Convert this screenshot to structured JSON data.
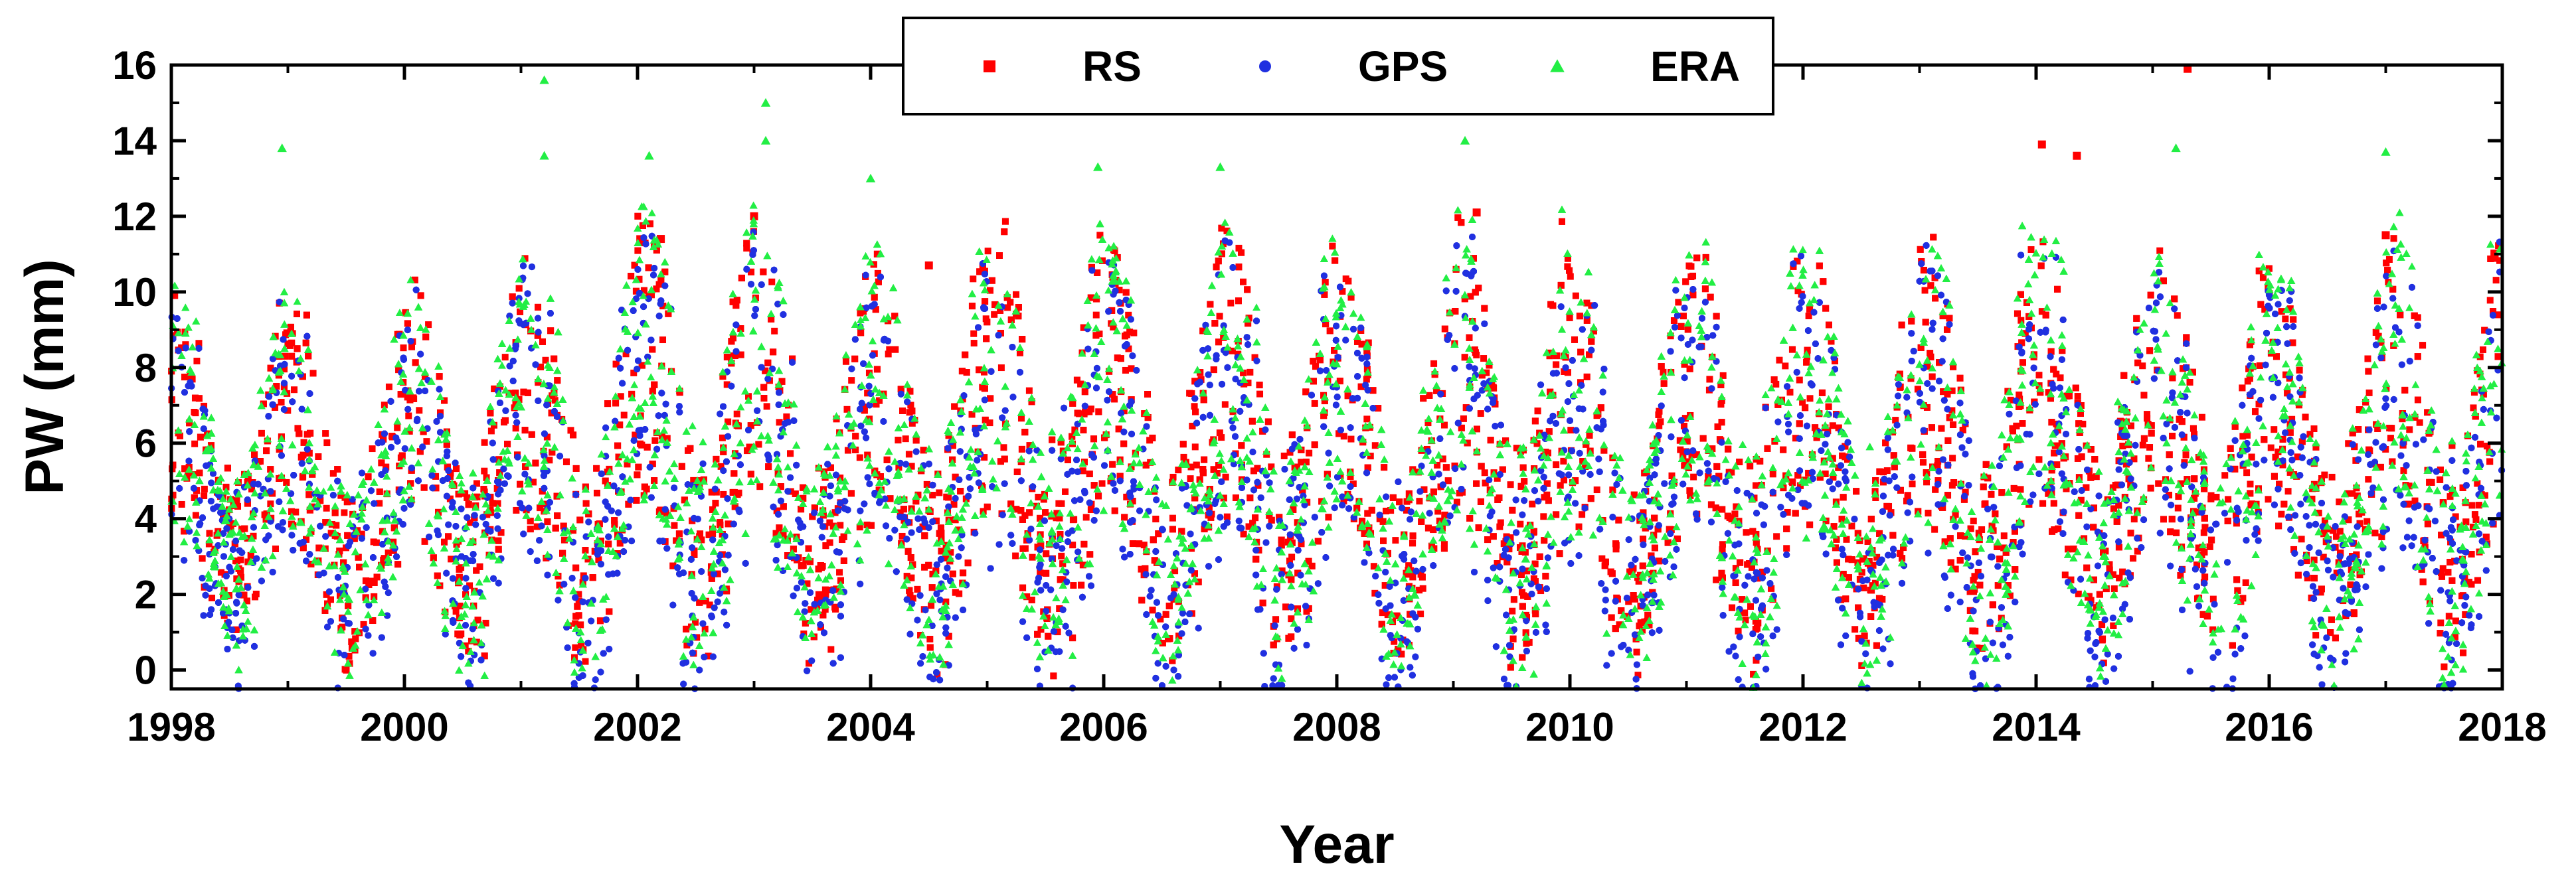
{
  "chart_data": {
    "type": "scatter",
    "title": "",
    "xlabel": "Year",
    "ylabel": "PW (mm)",
    "xlim": [
      1998,
      2018
    ],
    "ylim": [
      -0.5,
      16
    ],
    "xticks": [
      1998,
      2000,
      2002,
      2004,
      2006,
      2008,
      2010,
      2012,
      2014,
      2016,
      2018
    ],
    "xtick_labels": [
      "1998",
      "2000",
      "2002",
      "2004",
      "2006",
      "2008",
      "2010",
      "2012",
      "2014",
      "2016",
      "2018"
    ],
    "yticks": [
      0,
      2,
      4,
      6,
      8,
      10,
      12,
      14,
      16
    ],
    "ytick_labels": [
      "0",
      "2",
      "4",
      "6",
      "8",
      "10",
      "12",
      "14",
      "16"
    ],
    "grid": false,
    "legend": {
      "position": "top-center",
      "entries": [
        "RS",
        "GPS",
        "ERA"
      ]
    },
    "series": [
      {
        "name": "RS",
        "marker": "square",
        "color": "#ff0000",
        "description_seasonal": {
          "annual_cycle": true,
          "summer_peak_mm": [
            8.8,
            8.3,
            9.3,
            10.0,
            11.0,
            9.8,
            10.0,
            10.7,
            10.0,
            10.6,
            9.4,
            10.8,
            9.4,
            10.2,
            9.8,
            10.7,
            10.2,
            9.9,
            9.2,
            10.6,
            9.8
          ],
          "winter_min_mm": [
            1.0,
            0.5,
            0.8,
            0.6,
            0.6,
            0.6,
            0.6,
            0.6,
            0.8,
            0.6,
            0.6,
            0.6,
            0.6,
            0.6,
            0.6,
            0.6,
            0.6,
            0.6,
            0.6,
            0.6,
            0.6
          ]
        },
        "outliers": [
          {
            "x": 2002.2,
            "y": 11.4
          },
          {
            "x": 2003.0,
            "y": 12.0
          },
          {
            "x": 2004.5,
            "y": 10.7
          },
          {
            "x": 2009.2,
            "y": 12.1
          },
          {
            "x": 2014.05,
            "y": 13.9
          },
          {
            "x": 2014.35,
            "y": 13.6
          },
          {
            "x": 2015.3,
            "y": 15.9
          },
          {
            "x": 2017.0,
            "y": 11.5
          }
        ]
      },
      {
        "name": "GPS",
        "marker": "circle",
        "color": "#2030e0",
        "description_seasonal": {
          "annual_cycle": true,
          "summer_peak_mm": [
            8.6,
            8.0,
            9.0,
            9.8,
            10.5,
            9.5,
            9.8,
            10.4,
            9.8,
            10.3,
            9.2,
            10.5,
            9.2,
            10.0,
            9.5,
            10.4,
            10.0,
            9.7,
            9.0,
            10.3,
            9.6
          ],
          "winter_min_mm": [
            0.2,
            -0.3,
            0.0,
            -0.3,
            -0.3,
            -0.3,
            -0.3,
            -0.4,
            -0.3,
            -0.3,
            -0.3,
            -0.4,
            -0.4,
            -0.3,
            -0.3,
            -0.4,
            -0.5,
            -0.4,
            -0.4,
            -0.3,
            -0.3
          ]
        }
      },
      {
        "name": "ERA",
        "marker": "triangle",
        "color": "#22ee44",
        "description_seasonal": {
          "annual_cycle": true,
          "summer_peak_mm": [
            9.0,
            8.6,
            9.5,
            10.3,
            11.2,
            10.0,
            10.3,
            11.0,
            10.3,
            10.8,
            9.6,
            11.0,
            9.6,
            10.5,
            10.0,
            11.0,
            10.5,
            10.2,
            9.4,
            10.9,
            10.0
          ],
          "winter_min_mm": [
            0.6,
            0.3,
            0.5,
            0.3,
            0.3,
            0.3,
            0.3,
            0.3,
            0.4,
            0.3,
            0.3,
            0.3,
            0.3,
            0.3,
            0.3,
            0.3,
            0.3,
            0.3,
            0.3,
            0.3,
            0.3
          ]
        },
        "outliers": [
          {
            "x": 1998.95,
            "y": 13.8
          },
          {
            "x": 2001.2,
            "y": 15.6
          },
          {
            "x": 2001.2,
            "y": 13.6
          },
          {
            "x": 2002.1,
            "y": 13.6
          },
          {
            "x": 2003.1,
            "y": 15.0
          },
          {
            "x": 2003.1,
            "y": 14.0
          },
          {
            "x": 2004.0,
            "y": 13.0
          },
          {
            "x": 2005.95,
            "y": 13.3
          },
          {
            "x": 2007.0,
            "y": 13.3
          },
          {
            "x": 2009.1,
            "y": 14.0
          },
          {
            "x": 2015.2,
            "y": 13.8
          },
          {
            "x": 2017.0,
            "y": 13.7
          }
        ]
      }
    ]
  }
}
